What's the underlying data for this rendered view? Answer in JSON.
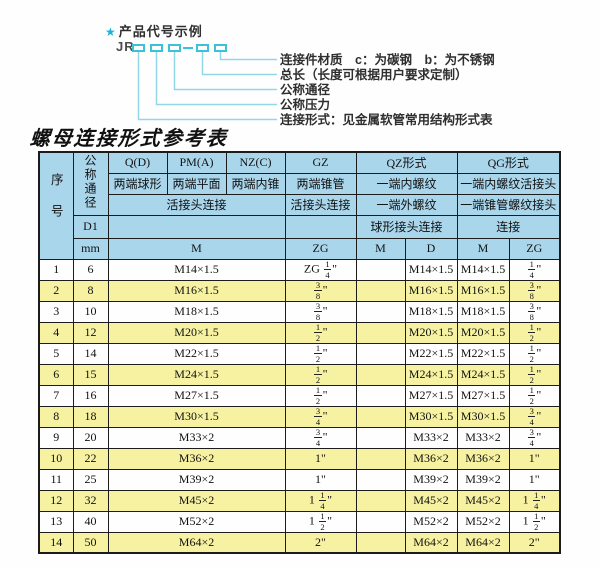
{
  "diagram": {
    "star_icon": "★",
    "title": "产品代号示例",
    "code_prefix": "JR",
    "labels": [
      "连接件材质　c：为碳钢　b：为不锈钢",
      "总长（长度可根据用户要求定制）",
      "公称通径",
      "公称压力",
      "连接形式：见金属软管常用结构形式表"
    ],
    "colors": {
      "star": "#1ab5d8",
      "box": "#3fc0da",
      "line": "#93d7e6"
    }
  },
  "table": {
    "title": "螺母连接形式参考表",
    "colors": {
      "header_bg": "#aad6ec",
      "alt_row_bg": "#f6f2a2",
      "border": "#1c1c1c"
    },
    "header": {
      "serial": "序号",
      "nominal_diameter": "公称通径",
      "d1": "D1",
      "mm": "mm",
      "qd": "Q(D)",
      "qd_desc": "两端球形",
      "pm": "PM(A)",
      "pm_desc": "两端平面",
      "nz": "NZ(C)",
      "nz_desc": "两端内锥",
      "union_join": "活接头连接",
      "gz": "GZ",
      "gz_desc": "两端锥管",
      "gz_union": "活接头连接",
      "qz": "QZ形式",
      "qz_desc1": "一端内螺纹",
      "qz_desc2": "一端外螺纹",
      "qz_desc3": "球形接头连接",
      "qg": "QG形式",
      "qg_desc1": "一端内螺纹活接头",
      "qg_desc2": "一端锥管螺纹接头",
      "qg_desc3": "连接",
      "m_span": "M",
      "gz_zg": "ZG",
      "qz_m": "M",
      "qz_d": "D",
      "qg_m": "M",
      "qg_zg": "ZG"
    },
    "rows": [
      [
        "1",
        "6",
        "M14×1.5",
        "ZG 1/4\"",
        "",
        "M14×1.5",
        "M14×1.5",
        "1/4\""
      ],
      [
        "2",
        "8",
        "M16×1.5",
        "3/8\"",
        "",
        "M16×1.5",
        "M16×1.5",
        "3/8\""
      ],
      [
        "3",
        "10",
        "M18×1.5",
        "3/8\"",
        "",
        "M18×1.5",
        "M18×1.5",
        "3/8\""
      ],
      [
        "4",
        "12",
        "M20×1.5",
        "1/2\"",
        "",
        "M20×1.5",
        "M20×1.5",
        "1/2\""
      ],
      [
        "5",
        "14",
        "M22×1.5",
        "1/2\"",
        "",
        "M22×1.5",
        "M22×1.5",
        "1/2\""
      ],
      [
        "6",
        "15",
        "M24×1.5",
        "1/2\"",
        "",
        "M24×1.5",
        "M24×1.5",
        "1/2\""
      ],
      [
        "7",
        "16",
        "M27×1.5",
        "1/2\"",
        "",
        "M27×1.5",
        "M27×1.5",
        "1/2\""
      ],
      [
        "8",
        "18",
        "M30×1.5",
        "3/4\"",
        "",
        "M30×1.5",
        "M30×1.5",
        "3/4\""
      ],
      [
        "9",
        "20",
        "M33×2",
        "3/4\"",
        "",
        "M33×2",
        "M33×2",
        "3/4\""
      ],
      [
        "10",
        "22",
        "M36×2",
        "1\"",
        "",
        "M36×2",
        "M36×2",
        "1\""
      ],
      [
        "11",
        "25",
        "M39×2",
        "1\"",
        "",
        "M39×2",
        "M39×2",
        "1\""
      ],
      [
        "12",
        "32",
        "M45×2",
        "1 1/4\"",
        "",
        "M45×2",
        "M45×2",
        "1 1/4\""
      ],
      [
        "13",
        "40",
        "M52×2",
        "1 1/2\"",
        "",
        "M52×2",
        "M52×2",
        "1 1/2\""
      ],
      [
        "14",
        "50",
        "M64×2",
        "2\"",
        "",
        "M64×2",
        "M64×2",
        "2\""
      ]
    ]
  }
}
